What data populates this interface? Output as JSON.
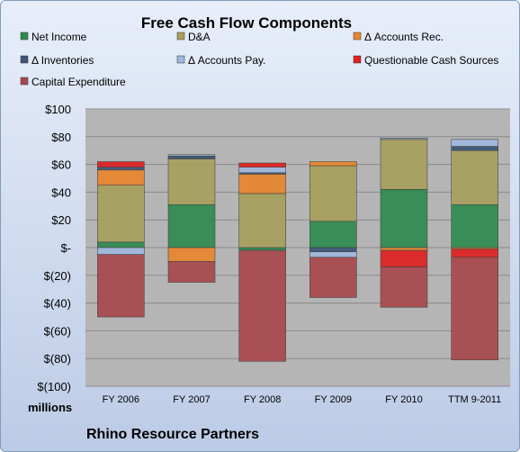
{
  "chart_data": {
    "type": "bar",
    "stacked": true,
    "title": "Free Cash Flow Components",
    "unit_label": "millions",
    "footer": "Rhino Resource Partners",
    "ylim": [
      -100,
      100
    ],
    "yticks": [
      -100,
      -80,
      -60,
      -40,
      -20,
      0,
      20,
      40,
      60,
      80,
      100
    ],
    "ytick_labels": [
      "$(100)",
      "$(80)",
      "$(60)",
      "$(40)",
      "$(20)",
      "$-",
      "$20",
      "$40",
      "$60",
      "$80",
      "$100"
    ],
    "grid": true,
    "legend_position": "top",
    "categories": [
      "FY 2006",
      "FY 2007",
      "FY 2008",
      "FY 2009",
      "FY 2010",
      "TTM 9-2011"
    ],
    "series": [
      {
        "name": "Net Income",
        "color": "#2e8b4e",
        "values": [
          4,
          31,
          -2,
          19,
          42,
          31
        ]
      },
      {
        "name": "D&A",
        "color": "#a79f5d",
        "values": [
          41,
          33,
          39,
          40,
          36,
          39
        ]
      },
      {
        "name": "Δ Accounts Rec.",
        "color": "#e8862d",
        "values": [
          11,
          -10,
          14,
          3,
          -2,
          -1
        ]
      },
      {
        "name": "Δ Inventories",
        "color": "#3a5575",
        "values": [
          2,
          2,
          1,
          -3,
          0,
          3
        ]
      },
      {
        "name": "Δ Accounts Pay.",
        "color": "#9fb8de",
        "values": [
          -5,
          1,
          4,
          -4,
          1,
          5
        ]
      },
      {
        "name": "Questionable Cash Sources",
        "color": "#e02020",
        "values": [
          4,
          0,
          3,
          0,
          -12,
          -6
        ]
      },
      {
        "name": "Capital Expenditure",
        "color": "#a8484c",
        "values": [
          -45,
          -15,
          -80,
          -29,
          -29,
          -74
        ]
      }
    ]
  }
}
